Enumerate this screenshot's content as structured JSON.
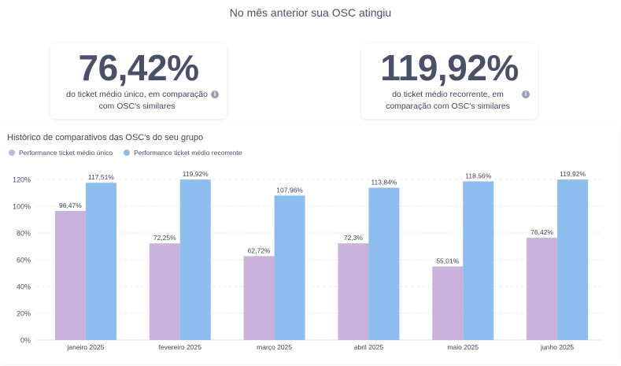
{
  "header": {
    "title": "No mês anterior sua OSC atingiu"
  },
  "cards": [
    {
      "value": "76,42%",
      "description": "do ticket médio único, em comparação com OSC's similares"
    },
    {
      "value": "119,92%",
      "description": "do ticket médio recorrente, em comparação com OSC's similares"
    }
  ],
  "chart_data": {
    "type": "bar",
    "title": "Histórico de comparativos das OSC's do seu grupo",
    "categories": [
      "janeiro 2025",
      "fevereiro 2025",
      "março 2025",
      "abril 2025",
      "maio 2025",
      "junho 2025"
    ],
    "series": [
      {
        "name": "Performance ticket médio único",
        "color": "#c9b3dc",
        "values": [
          96.47,
          72.25,
          62.72,
          72.3,
          55.01,
          76.42
        ],
        "labels": [
          "96,47%",
          "72,25%",
          "62,72%",
          "72,3%",
          "55,01%",
          "76,42%"
        ]
      },
      {
        "name": "Performance ticket médio recorrente",
        "color": "#8bbdee",
        "values": [
          117.51,
          119.92,
          107.96,
          113.84,
          118.56,
          119.92
        ],
        "labels": [
          "117,51%",
          "119,92%",
          "107,96%",
          "113,84%",
          "118,56%",
          "119,92%"
        ]
      }
    ],
    "ylim": [
      0,
      120
    ],
    "yticks": [
      0,
      20,
      40,
      60,
      80,
      100,
      120
    ],
    "ytick_labels": [
      "0%",
      "20%",
      "40%",
      "60%",
      "80%",
      "100%",
      "120%"
    ],
    "grid": true,
    "legend_position": "top-left"
  }
}
